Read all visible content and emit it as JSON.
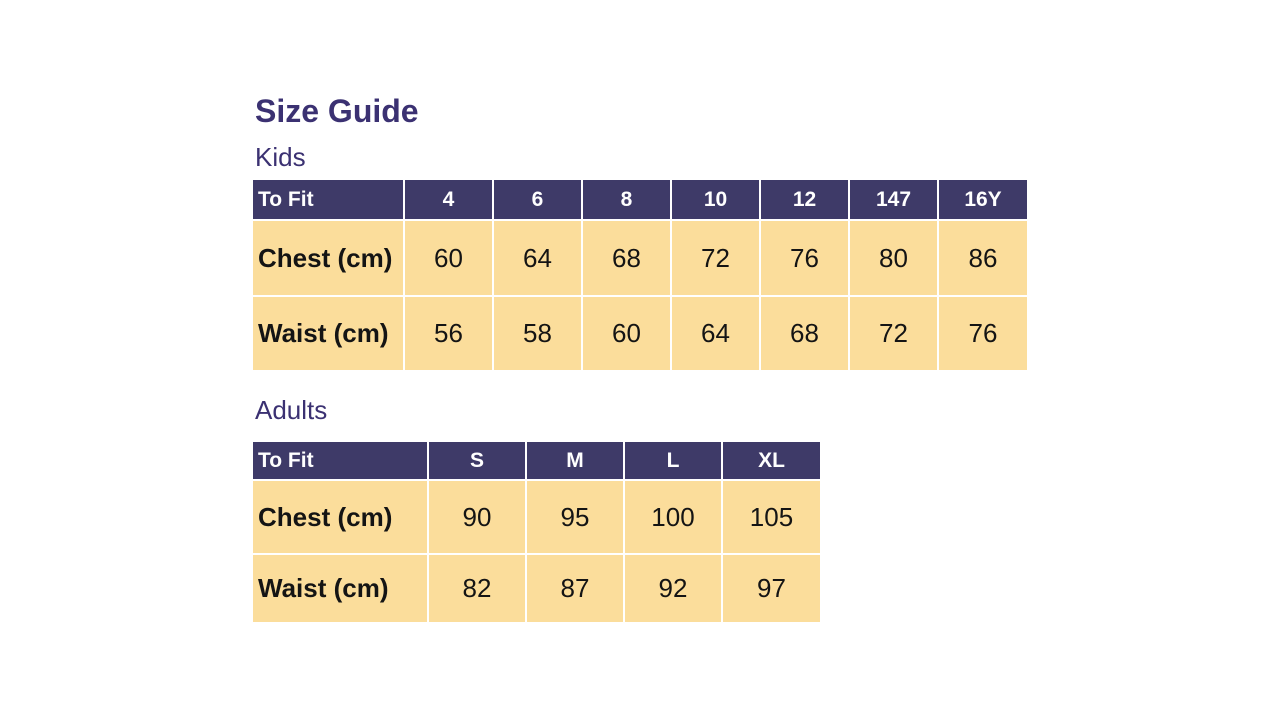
{
  "page": {
    "title": "Size Guide"
  },
  "colors": {
    "background": "#FFFFFF",
    "title_text": "#3B3172",
    "header_bg": "#3E3A68",
    "header_text": "#FFFFFF",
    "cell_bg": "#FBDD9B",
    "cell_text": "#141414",
    "grid_line": "#FFFFFF"
  },
  "kids_section": {
    "label": "Kids",
    "table": {
      "header": [
        "To Fit",
        "4",
        "6",
        "8",
        "10",
        "12",
        "147",
        "16Y"
      ],
      "rows": [
        {
          "label": "Chest (cm)",
          "values": [
            "60",
            "64",
            "68",
            "72",
            "76",
            "80",
            "86"
          ]
        },
        {
          "label": "Waist (cm)",
          "values": [
            "56",
            "58",
            "60",
            "64",
            "68",
            "72",
            "76"
          ]
        }
      ]
    }
  },
  "adults_section": {
    "label": "Adults",
    "table": {
      "header": [
        "To Fit",
        "S",
        "M",
        "L",
        "XL"
      ],
      "rows": [
        {
          "label": "Chest (cm)",
          "values": [
            "90",
            "95",
            "100",
            "105"
          ]
        },
        {
          "label": "Waist (cm)",
          "values": [
            "82",
            "87",
            "92",
            "97"
          ]
        }
      ]
    }
  }
}
